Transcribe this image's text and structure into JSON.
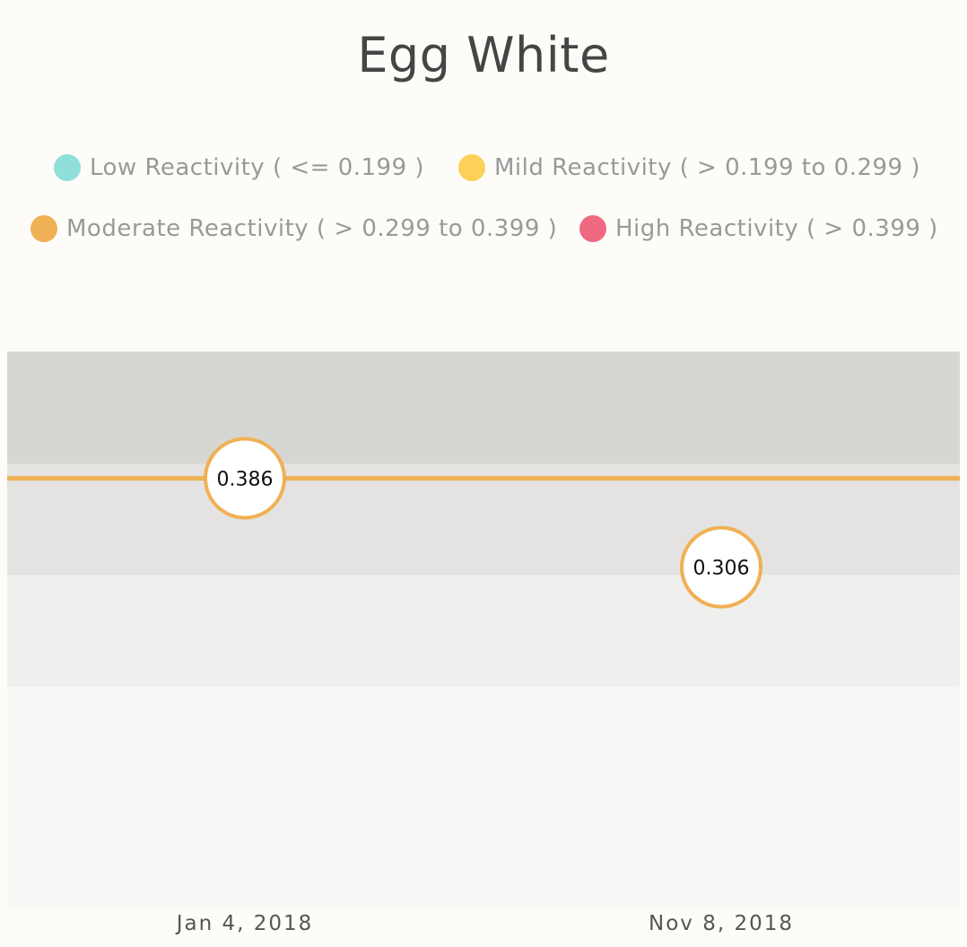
{
  "chart_data": {
    "type": "line",
    "title": "Egg White",
    "x": [
      "Jan 4, 2018",
      "Nov 8, 2018"
    ],
    "series": [
      {
        "values": [
          0.386,
          0.306
        ],
        "data_labels": [
          "0.386",
          "0.306"
        ],
        "color": "#f0b054"
      }
    ],
    "reference_line": {
      "value": 0.386,
      "color": "#f0b054"
    },
    "ylim": [
      0,
      0.5
    ],
    "bands": [
      {
        "from": 0.0,
        "to": 0.199,
        "color": "#f7f7f5"
      },
      {
        "from": 0.199,
        "to": 0.299,
        "color": "#efefed"
      },
      {
        "from": 0.299,
        "to": 0.399,
        "color": "#e4e3e1"
      },
      {
        "from": 0.399,
        "to": 0.5,
        "color": "#d6d6d2"
      }
    ],
    "legend": [
      {
        "label": "Low Reactivity ( <= 0.199 )",
        "color": "#8fe0db"
      },
      {
        "label": "Mild Reactivity ( > 0.199 to 0.299 )",
        "color": "#fdd058"
      },
      {
        "label": "Moderate Reactivity ( > 0.299 to 0.399 )",
        "color": "#f0b054"
      },
      {
        "label": "High Reactivity ( > 0.399 )",
        "color": "#ef6a80"
      }
    ],
    "legend_position": "top",
    "grid": false
  }
}
